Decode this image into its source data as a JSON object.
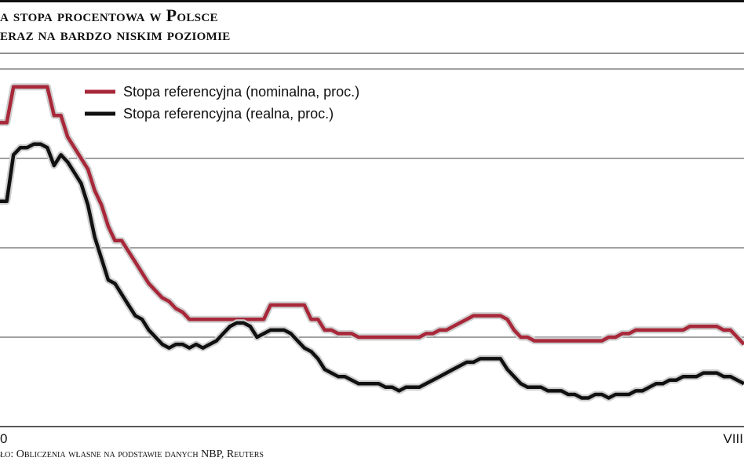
{
  "title": {
    "line1": "a stopa procentowa w Polsce",
    "line2": "eraz na bardzo niskim poziomie"
  },
  "source": "ło: Obliczenia własne na podstawie danych NBP, Reuters",
  "colors": {
    "nominal": "#a8283a",
    "real": "#111111",
    "grid": "#444444",
    "halo": "#cfcfcf"
  },
  "chart_data": {
    "type": "line",
    "x_tick_labels": [
      "0",
      "VIII"
    ],
    "ylim": [
      0,
      100
    ],
    "grid": true,
    "legend_position": "top-left",
    "series": [
      {
        "name": "Stopa referencyjna (nominalna, proc.)",
        "values": [
          85,
          85,
          95,
          95,
          95,
          95,
          95,
          95,
          87,
          87,
          81,
          78,
          75,
          72,
          66,
          62,
          56,
          52,
          52,
          49,
          46,
          43,
          40,
          38,
          36,
          35,
          33,
          32,
          30,
          30,
          30,
          30,
          30,
          30,
          30,
          30,
          30,
          30,
          30,
          30,
          34,
          34,
          34,
          34,
          34,
          34,
          30,
          30,
          27,
          27,
          26,
          26,
          26,
          25,
          25,
          25,
          25,
          25,
          25,
          25,
          25,
          25,
          25,
          26,
          26,
          27,
          27,
          28,
          29,
          30,
          31,
          31,
          31,
          31,
          31,
          30,
          27,
          25,
          25,
          24,
          24,
          24,
          24,
          24,
          24,
          24,
          24,
          24,
          24,
          24,
          25,
          25,
          26,
          26,
          27,
          27,
          27,
          27,
          27,
          27,
          27,
          27,
          28,
          28,
          28,
          28,
          28,
          27,
          27,
          25,
          23
        ]
      },
      {
        "name": "Stopa referencyjna (realna, proc.)",
        "values": [
          63,
          63,
          76,
          78,
          78,
          79,
          79,
          78,
          73,
          76,
          74,
          71,
          68,
          62,
          53,
          47,
          41,
          40,
          37,
          34,
          31,
          30,
          27,
          25,
          23,
          22,
          23,
          23,
          22,
          23,
          22,
          23,
          24,
          26,
          28,
          29,
          29,
          28,
          25,
          26,
          27,
          27,
          27,
          26,
          24,
          22,
          21,
          19,
          16,
          15,
          14,
          14,
          13,
          12,
          12,
          12,
          12,
          11,
          11,
          10,
          11,
          11,
          11,
          12,
          13,
          14,
          15,
          16,
          17,
          18,
          18,
          19,
          19,
          19,
          19,
          16,
          14,
          12,
          11,
          11,
          11,
          10,
          10,
          10,
          9,
          9,
          8,
          8,
          9,
          9,
          8,
          9,
          9,
          9,
          10,
          10,
          11,
          12,
          12,
          13,
          13,
          14,
          14,
          14,
          15,
          15,
          15,
          14,
          14,
          13,
          12
        ]
      }
    ]
  }
}
